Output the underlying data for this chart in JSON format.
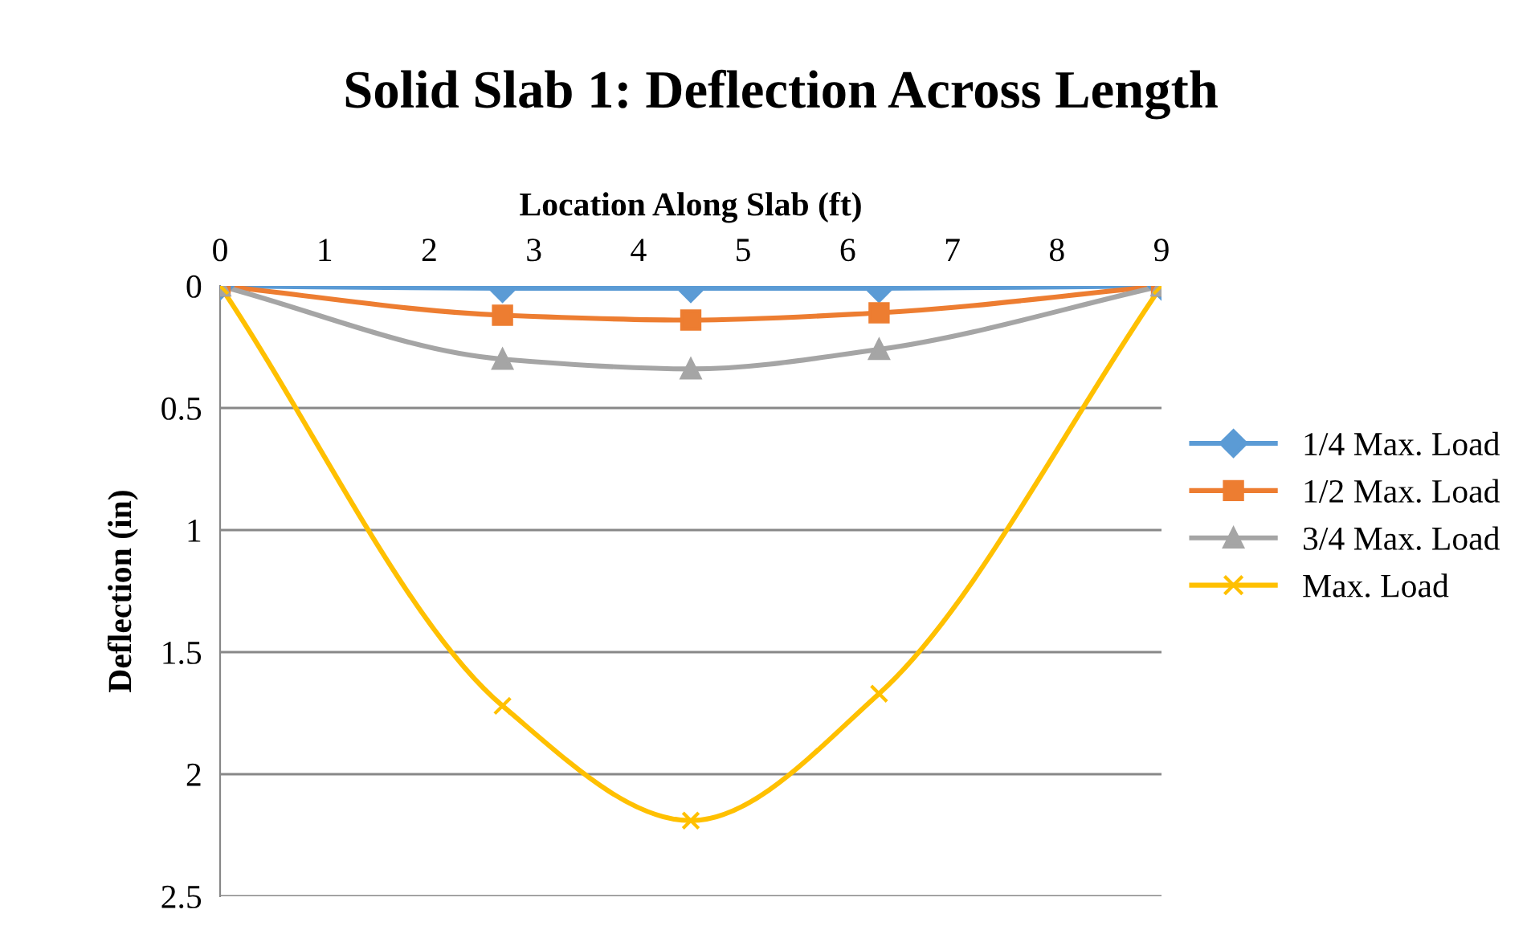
{
  "chart_data": {
    "type": "line",
    "title": "Solid Slab 1: Deflection Across Length",
    "xlabel": "Location Along Slab (ft)",
    "ylabel": "Deflection (in)",
    "x": [
      0,
      2.7,
      4.5,
      6.3,
      9
    ],
    "series": [
      {
        "name": "1/4 Max. Load",
        "color": "#5b9bd5",
        "marker": "diamond",
        "values": [
          0,
          0.01,
          0.01,
          0.01,
          0
        ]
      },
      {
        "name": "1/2 Max. Load",
        "color": "#ed7d31",
        "marker": "square",
        "values": [
          0,
          0.12,
          0.14,
          0.11,
          0
        ]
      },
      {
        "name": "3/4 Max. Load",
        "color": "#a5a5a5",
        "marker": "triangle",
        "values": [
          0,
          0.3,
          0.34,
          0.26,
          0
        ]
      },
      {
        "name": "Max. Load",
        "color": "#ffc000",
        "marker": "cross",
        "values": [
          0,
          1.72,
          2.19,
          1.67,
          0
        ]
      }
    ],
    "xlim": [
      0,
      9
    ],
    "xticks": [
      0,
      1,
      2,
      3,
      4,
      5,
      6,
      7,
      8,
      9
    ],
    "ylim": [
      2.5,
      0
    ],
    "yticks": [
      0,
      0.5,
      1,
      1.5,
      2,
      2.5
    ],
    "grid": "y",
    "legend": "right",
    "line_style": "solid"
  }
}
